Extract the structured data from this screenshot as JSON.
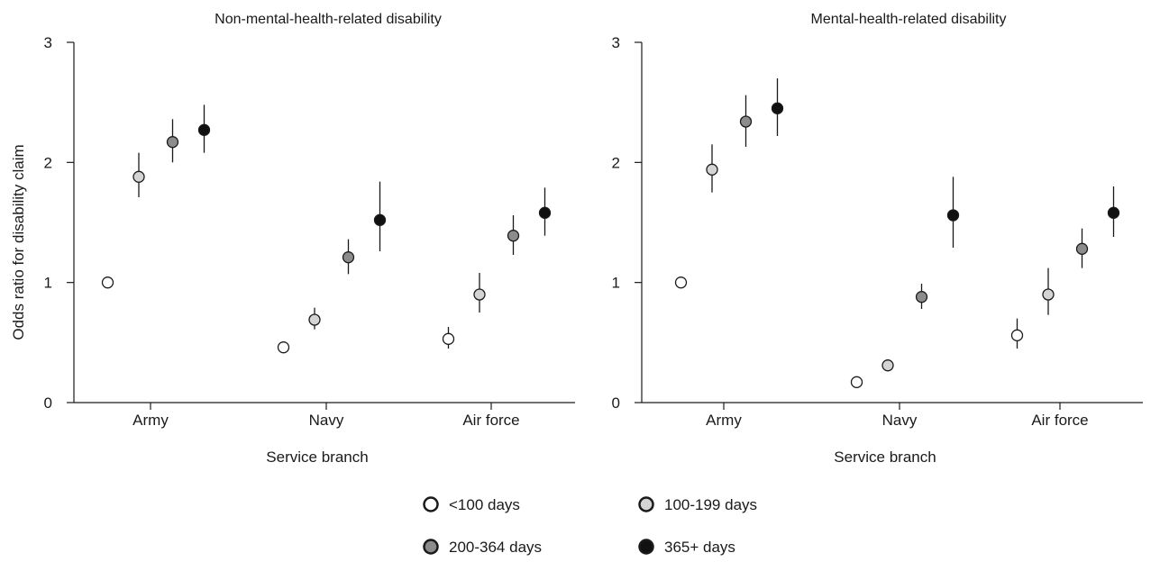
{
  "chart_data": [
    {
      "type": "scatter",
      "title": "Non-mental-health-related disability",
      "xlabel": "Service branch",
      "ylabel": "Odds ratio for  disability claim",
      "categories": [
        "Army",
        "Navy",
        "Air force"
      ],
      "yticks": [
        "0",
        "1",
        "2",
        "3"
      ],
      "ylim": [
        0,
        3
      ],
      "grid": false,
      "series": [
        {
          "name": "<100 days",
          "values": [
            1.0,
            0.46,
            0.53
          ],
          "ci_low": [
            null,
            null,
            0.45
          ],
          "ci_high": [
            null,
            null,
            0.63
          ]
        },
        {
          "name": "100-199 days",
          "values": [
            1.88,
            0.69,
            0.9
          ],
          "ci_low": [
            1.71,
            0.61,
            0.75
          ],
          "ci_high": [
            2.08,
            0.79,
            1.08
          ]
        },
        {
          "name": "200-364 days",
          "values": [
            2.17,
            1.21,
            1.39
          ],
          "ci_low": [
            2.0,
            1.07,
            1.23
          ],
          "ci_high": [
            2.36,
            1.36,
            1.56
          ]
        },
        {
          "name": "365+ days",
          "values": [
            2.27,
            1.52,
            1.58
          ],
          "ci_low": [
            2.08,
            1.26,
            1.39
          ],
          "ci_high": [
            2.48,
            1.84,
            1.79
          ]
        }
      ]
    },
    {
      "type": "scatter",
      "title": "Mental-health-related disability",
      "xlabel": "Service branch",
      "ylabel": "",
      "categories": [
        "Army",
        "Navy",
        "Air force"
      ],
      "yticks": [
        "0",
        "1",
        "2",
        "3"
      ],
      "ylim": [
        0,
        3
      ],
      "grid": false,
      "series": [
        {
          "name": "<100 days",
          "values": [
            1.0,
            0.17,
            0.56
          ],
          "ci_low": [
            null,
            null,
            0.45
          ],
          "ci_high": [
            null,
            null,
            0.7
          ]
        },
        {
          "name": "100-199 days",
          "values": [
            1.94,
            0.31,
            0.9
          ],
          "ci_low": [
            1.75,
            0.26,
            0.73
          ],
          "ci_high": [
            2.15,
            0.36,
            1.12
          ]
        },
        {
          "name": "200-364 days",
          "values": [
            2.34,
            0.88,
            1.28
          ],
          "ci_low": [
            2.13,
            0.78,
            1.12
          ],
          "ci_high": [
            2.56,
            0.99,
            1.45
          ]
        },
        {
          "name": "365+ days",
          "values": [
            2.45,
            1.56,
            1.58
          ],
          "ci_low": [
            2.22,
            1.29,
            1.38
          ],
          "ci_high": [
            2.7,
            1.88,
            1.8
          ]
        }
      ]
    }
  ],
  "legend": {
    "placement": "bottom-center",
    "items": [
      {
        "label": "<100 days",
        "color": "#ffffff",
        "icon": "circle-white"
      },
      {
        "label": "100-199 days",
        "color": "#d4d4d4",
        "icon": "circle-light-gray"
      },
      {
        "label": "200-364 days",
        "color": "#8c8c8c",
        "icon": "circle-dark-gray"
      },
      {
        "label": "365+ days",
        "color": "#111111",
        "icon": "circle-black"
      }
    ]
  },
  "colors": {
    "axis": "#1a1a1a",
    "marker_stroke": "#1a1a1a",
    "series_fills": [
      "#ffffff",
      "#d4d4d4",
      "#8c8c8c",
      "#111111"
    ]
  }
}
